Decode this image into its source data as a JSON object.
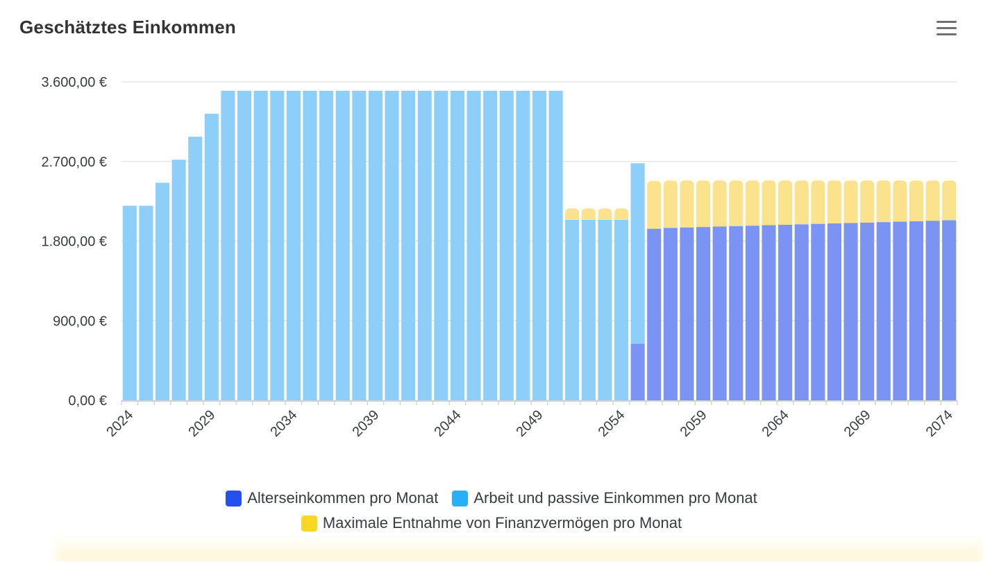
{
  "header": {
    "title": "Geschätztes Einkommen",
    "menu_icon": "hamburger-menu-icon"
  },
  "colors": {
    "alters": "#7b93f3",
    "arbeit": "#8ecff9",
    "entnahme": "#fbe38e",
    "grid": "#e0e0e0",
    "axis": "#cccccc",
    "label": "#373d3f",
    "legend_alters": "#2450f0",
    "legend_arbeit": "#27b0f7",
    "legend_entnahme": "#f8d626"
  },
  "chart_data": {
    "type": "bar",
    "stacked": true,
    "title": "Geschätztes Einkommen",
    "xlabel": "",
    "ylabel": "",
    "ylim": [
      0,
      3600
    ],
    "y_ticks": [
      0,
      900,
      1800,
      2700,
      3600
    ],
    "y_tick_labels": [
      "0,00 €",
      "900,00 €",
      "1.800,00 €",
      "2.700,00 €",
      "3.600,00 €"
    ],
    "x_tick_labels": [
      "2024",
      "2029",
      "2034",
      "2039",
      "2044",
      "2049",
      "2054",
      "2059",
      "2064",
      "2069",
      "2074"
    ],
    "grid": true,
    "legend_position": "bottom",
    "categories": [
      "2024",
      "2025",
      "2026",
      "2027",
      "2028",
      "2029",
      "2030",
      "2031",
      "2032",
      "2033",
      "2034",
      "2035",
      "2036",
      "2037",
      "2038",
      "2039",
      "2040",
      "2041",
      "2042",
      "2043",
      "2044",
      "2045",
      "2046",
      "2047",
      "2048",
      "2049",
      "2050",
      "2051",
      "2052",
      "2053",
      "2054",
      "2055",
      "2056",
      "2057",
      "2058",
      "2059",
      "2060",
      "2061",
      "2062",
      "2063",
      "2064",
      "2065",
      "2066",
      "2067",
      "2068",
      "2069",
      "2070",
      "2071",
      "2072",
      "2073",
      "2074"
    ],
    "series": [
      {
        "name": "Alterseinkommen pro Monat",
        "values": [
          0,
          0,
          0,
          0,
          0,
          0,
          0,
          0,
          0,
          0,
          0,
          0,
          0,
          0,
          0,
          0,
          0,
          0,
          0,
          0,
          0,
          0,
          0,
          0,
          0,
          0,
          0,
          0,
          0,
          0,
          0,
          640,
          1940,
          1950,
          1955,
          1960,
          1965,
          1970,
          1975,
          1980,
          1985,
          1990,
          1995,
          2000,
          2005,
          2010,
          2015,
          2020,
          2025,
          2030,
          2035
        ]
      },
      {
        "name": "Arbeit und passive Einkommen pro Monat",
        "values": [
          2200,
          2200,
          2460,
          2720,
          2980,
          3240,
          3500,
          3500,
          3500,
          3500,
          3500,
          3500,
          3500,
          3500,
          3500,
          3500,
          3500,
          3500,
          3500,
          3500,
          3500,
          3500,
          3500,
          3500,
          3500,
          3500,
          3500,
          2040,
          2040,
          2040,
          2040,
          2040,
          0,
          0,
          0,
          0,
          0,
          0,
          0,
          0,
          0,
          0,
          0,
          0,
          0,
          0,
          0,
          0,
          0,
          0,
          0
        ]
      },
      {
        "name": "Maximale Entnahme von Finanzvermögen pro Monat",
        "values": [
          0,
          0,
          0,
          0,
          0,
          0,
          0,
          0,
          0,
          0,
          0,
          0,
          0,
          0,
          0,
          0,
          0,
          0,
          0,
          0,
          0,
          0,
          0,
          0,
          0,
          0,
          0,
          130,
          130,
          130,
          130,
          0,
          540,
          535,
          530,
          525,
          520,
          515,
          510,
          505,
          500,
          495,
          490,
          485,
          480,
          475,
          470,
          465,
          460,
          455,
          450
        ]
      }
    ]
  },
  "legend": {
    "alters": "Alterseinkommen pro Monat",
    "arbeit": "Arbeit und passive Einkommen pro Monat",
    "entnahme": "Maximale Entnahme von Finanzvermögen pro Monat"
  }
}
